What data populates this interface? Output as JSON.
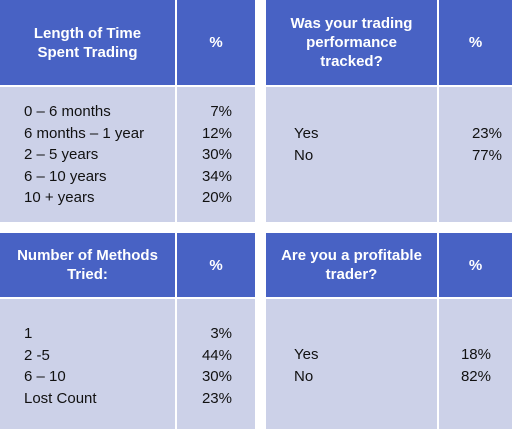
{
  "tables": [
    {
      "header": "Length of Time Spent Trading",
      "pct_header": "%",
      "labels": [
        "0 – 6 months",
        "6 months – 1 year",
        "2 – 5 years",
        "6 – 10 years",
        "10 + years"
      ],
      "values": [
        "7%",
        "12%",
        "30%",
        "34%",
        "20%"
      ]
    },
    {
      "header": "Was your trading performance tracked?",
      "pct_header": "%",
      "labels": [
        "Yes",
        "No"
      ],
      "values": [
        "23%",
        "77%"
      ]
    },
    {
      "header": "Number of Methods Tried:",
      "pct_header": "%",
      "labels": [
        "1",
        "2 -5",
        "6 – 10",
        "Lost Count"
      ],
      "values": [
        "3%",
        "44%",
        "30%",
        "23%"
      ]
    },
    {
      "header": "Are you a profitable trader?",
      "pct_header": "%",
      "labels": [
        "Yes",
        "No"
      ],
      "values": [
        "18%",
        "82%"
      ]
    }
  ],
  "colors": {
    "header_bg": "#4862c4",
    "body_bg": "#ccd1e8",
    "header_text": "#ffffff"
  }
}
